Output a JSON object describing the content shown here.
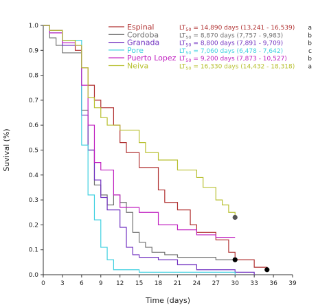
{
  "chart_data": {
    "type": "line",
    "step": true,
    "xlabel": "Time (days)",
    "ylabel": "Suvival (%)",
    "xlim": [
      0,
      39
    ],
    "ylim": [
      0,
      1.0
    ],
    "x_ticks": [
      "0",
      "3",
      "6",
      "9",
      "12",
      "15",
      "18",
      "21",
      "24",
      "27",
      "30",
      "33",
      "36",
      "39"
    ],
    "y_ticks": [
      "0.0",
      "0.1",
      "0.2",
      "0.3",
      "0.4",
      "0.5",
      "0.6",
      "0.7",
      "0.8",
      "0.9",
      "1.0"
    ],
    "series": [
      {
        "name": "Espinal",
        "color": "#b03030",
        "lt50_prefix": "LT",
        "lt50_sub": "50",
        "lt50_text": " = 14,890 days (13,241 - 16,539)",
        "group": "a",
        "x": [
          0,
          1,
          3,
          5,
          6,
          7,
          8,
          9,
          11,
          12,
          13,
          15,
          18,
          19,
          21,
          23,
          24,
          27,
          29,
          30,
          31,
          33,
          35
        ],
        "y": [
          1.0,
          0.98,
          0.94,
          0.9,
          0.83,
          0.76,
          0.7,
          0.67,
          0.6,
          0.53,
          0.49,
          0.43,
          0.34,
          0.29,
          0.26,
          0.2,
          0.17,
          0.14,
          0.09,
          0.06,
          0.06,
          0.03,
          0.02
        ],
        "censor": {
          "x": 35,
          "y": 0.02
        }
      },
      {
        "name": "Cordoba",
        "color": "#707070",
        "lt50_prefix": "LT",
        "lt50_sub": "50",
        "lt50_text": " = 8,870 days (7,757 - 9,983)",
        "group": "b",
        "x": [
          0,
          1,
          2,
          3,
          6,
          7,
          8,
          9,
          10,
          11,
          12,
          13,
          14,
          15,
          16,
          17,
          19,
          21,
          24,
          27,
          30
        ],
        "y": [
          1.0,
          0.95,
          0.92,
          0.89,
          0.66,
          0.5,
          0.36,
          0.32,
          0.28,
          0.32,
          0.29,
          0.25,
          0.17,
          0.13,
          0.11,
          0.09,
          0.08,
          0.07,
          0.07,
          0.06,
          0.06
        ],
        "censor": {
          "x": 30,
          "y": 0.06
        }
      },
      {
        "name": "Granada",
        "color": "#7030c0",
        "lt50_prefix": "LT",
        "lt50_sub": "50",
        "lt50_text": " = 8,800 days (7,891 - 9,709)",
        "group": "b",
        "x": [
          0,
          1,
          3,
          6,
          7,
          8,
          9,
          10,
          12,
          13,
          14,
          15,
          18,
          21,
          24,
          30,
          33
        ],
        "y": [
          1.0,
          0.98,
          0.92,
          0.64,
          0.5,
          0.38,
          0.31,
          0.26,
          0.19,
          0.11,
          0.08,
          0.07,
          0.06,
          0.04,
          0.02,
          0.01,
          0.0
        ],
        "censor": null
      },
      {
        "name": "Pore",
        "color": "#40d0e0",
        "lt50_prefix": "LT",
        "lt50_sub": "50",
        "lt50_text": " = 7,060 days (6,478 - 7,642)",
        "group": "c",
        "x": [
          0,
          1,
          3,
          5,
          6,
          7,
          8,
          9,
          10,
          11,
          15,
          18,
          21,
          24,
          27,
          30
        ],
        "y": [
          1.0,
          0.97,
          0.94,
          0.94,
          0.52,
          0.32,
          0.22,
          0.11,
          0.06,
          0.02,
          0.01,
          0.01,
          0.01,
          0.01,
          0.01,
          0.0
        ],
        "censor": null
      },
      {
        "name": "Puerto Lopez",
        "color": "#c020c0",
        "lt50_prefix": "LT",
        "lt50_sub": "50",
        "lt50_text": " = 9,200 days (7,873 - 10,527)",
        "group": "b",
        "x": [
          0,
          1,
          3,
          5,
          6,
          7,
          8,
          9,
          11,
          12,
          15,
          18,
          21,
          24,
          27,
          30
        ],
        "y": [
          1.0,
          0.97,
          0.93,
          0.92,
          0.76,
          0.6,
          0.45,
          0.42,
          0.32,
          0.27,
          0.25,
          0.2,
          0.18,
          0.16,
          0.15,
          0.15
        ],
        "censor": null
      },
      {
        "name": "Neiva",
        "color": "#b8c030",
        "lt50_prefix": "LT",
        "lt50_sub": "50",
        "lt50_text": " = 16,330 days (14,432 - 18,318)",
        "group": "a",
        "x": [
          0,
          1,
          3,
          5,
          6,
          7,
          8,
          9,
          10,
          12,
          15,
          16,
          18,
          21,
          24,
          25,
          27,
          28,
          29,
          30
        ],
        "y": [
          1.0,
          0.98,
          0.94,
          0.92,
          0.83,
          0.71,
          0.67,
          0.63,
          0.6,
          0.58,
          0.53,
          0.49,
          0.46,
          0.42,
          0.39,
          0.35,
          0.3,
          0.28,
          0.25,
          0.23
        ],
        "censor": {
          "x": 30,
          "y": 0.23
        }
      }
    ]
  }
}
